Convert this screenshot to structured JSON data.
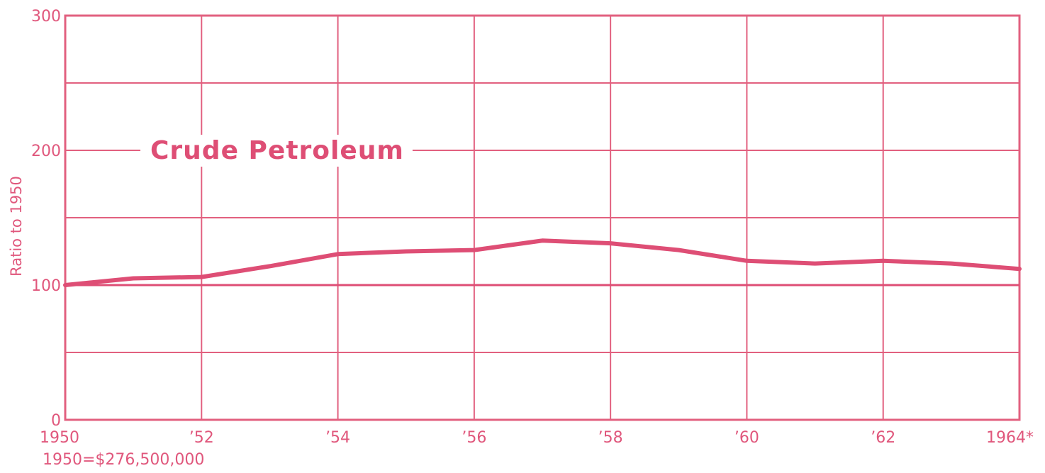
{
  "chart_data": {
    "type": "line",
    "title": "Crude Petroleum",
    "ylabel": "Ratio to 1950",
    "xlabel": "",
    "note": "1950=$276,500,000",
    "x": [
      1950,
      1951,
      1952,
      1953,
      1954,
      1955,
      1956,
      1957,
      1958,
      1959,
      1960,
      1961,
      1962,
      1963,
      1964
    ],
    "series": [
      {
        "values": [
          100,
          105,
          106,
          114,
          123,
          125,
          126,
          133,
          131,
          126,
          118,
          116,
          118,
          116,
          112
        ]
      }
    ],
    "xlim": [
      1950,
      1964
    ],
    "ylim": [
      0,
      300
    ],
    "yticks": [
      {
        "value": 0,
        "label": "0"
      },
      {
        "value": 100,
        "label": "100"
      },
      {
        "value": 200,
        "label": "200"
      },
      {
        "value": 300,
        "label": "300"
      }
    ],
    "ygrid": [
      50,
      100,
      150,
      200,
      250,
      300
    ],
    "xticks": [
      {
        "value": 1950,
        "label": "1950"
      },
      {
        "value": 1952,
        "label": "’52"
      },
      {
        "value": 1954,
        "label": "’54"
      },
      {
        "value": 1956,
        "label": "’56"
      },
      {
        "value": 1958,
        "label": "’58"
      },
      {
        "value": 1960,
        "label": "’60"
      },
      {
        "value": 1962,
        "label": "’62"
      },
      {
        "value": 1964,
        "label": "1964*"
      }
    ],
    "grid": true,
    "legend": "none",
    "colors": {
      "line": "#de4e75",
      "grid": "#e2607f",
      "text": "#e0577c"
    }
  }
}
